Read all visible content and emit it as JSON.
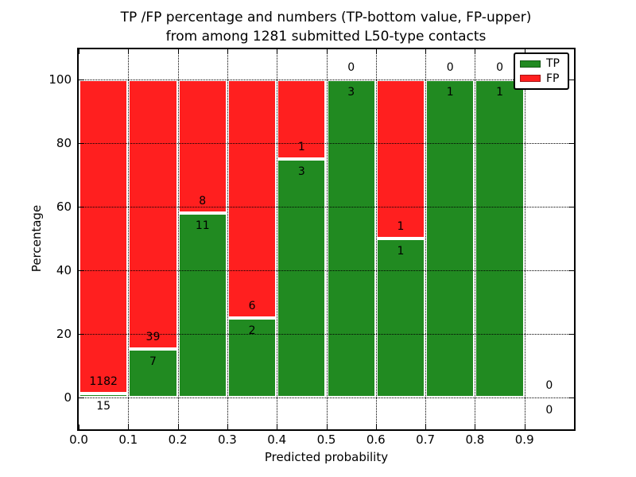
{
  "chart_data": {
    "type": "bar",
    "stacked": true,
    "title_line1": "TP /FP percentage and numbers (TP-bottom value, FP-upper)",
    "title_line2": "from among 1281 submitted L50-type contacts",
    "xlabel": "Predicted probability",
    "ylabel": "Percentage",
    "x_ticks": [
      "0.0",
      "0.1",
      "0.2",
      "0.3",
      "0.4",
      "0.5",
      "0.6",
      "0.7",
      "0.8",
      "0.9"
    ],
    "y_ticks": [
      "0",
      "20",
      "40",
      "60",
      "80",
      "100"
    ],
    "xlim": [
      0.0,
      1.0
    ],
    "ylim": [
      -10,
      110
    ],
    "grid": "dotted both axes, drawn over bars",
    "total_contacts": 1281,
    "legend": {
      "position": "upper right",
      "entries": [
        {
          "label": "TP",
          "color": "#218a21"
        },
        {
          "label": "FP",
          "color": "#ff1f1f"
        }
      ]
    },
    "bins": [
      {
        "range": [
          0.0,
          0.1
        ],
        "tp_count": 15,
        "fp_count": 1182,
        "tp_pct": 1.25
      },
      {
        "range": [
          0.1,
          0.2
        ],
        "tp_count": 7,
        "fp_count": 39,
        "tp_pct": 15.2
      },
      {
        "range": [
          0.2,
          0.3
        ],
        "tp_count": 11,
        "fp_count": 8,
        "tp_pct": 57.9
      },
      {
        "range": [
          0.3,
          0.4
        ],
        "tp_count": 2,
        "fp_count": 6,
        "tp_pct": 25
      },
      {
        "range": [
          0.4,
          0.5
        ],
        "tp_count": 3,
        "fp_count": 1,
        "tp_pct": 75
      },
      {
        "range": [
          0.5,
          0.6
        ],
        "tp_count": 3,
        "fp_count": 0,
        "tp_pct": 100
      },
      {
        "range": [
          0.6,
          0.7
        ],
        "tp_count": 1,
        "fp_count": 1,
        "tp_pct": 50
      },
      {
        "range": [
          0.7,
          0.8
        ],
        "tp_count": 1,
        "fp_count": 0,
        "tp_pct": 100
      },
      {
        "range": [
          0.8,
          0.9
        ],
        "tp_count": 1,
        "fp_count": 0,
        "tp_pct": 100
      },
      {
        "range": [
          0.9,
          1.0
        ],
        "tp_count": 0,
        "fp_count": 0,
        "tp_pct": null
      }
    ],
    "colors": {
      "tp": "#218a21",
      "fp": "#ff1f1f",
      "bar_edge": "#ffffff",
      "grid": "#000000",
      "text": "#000000",
      "background": "#ffffff"
    }
  }
}
